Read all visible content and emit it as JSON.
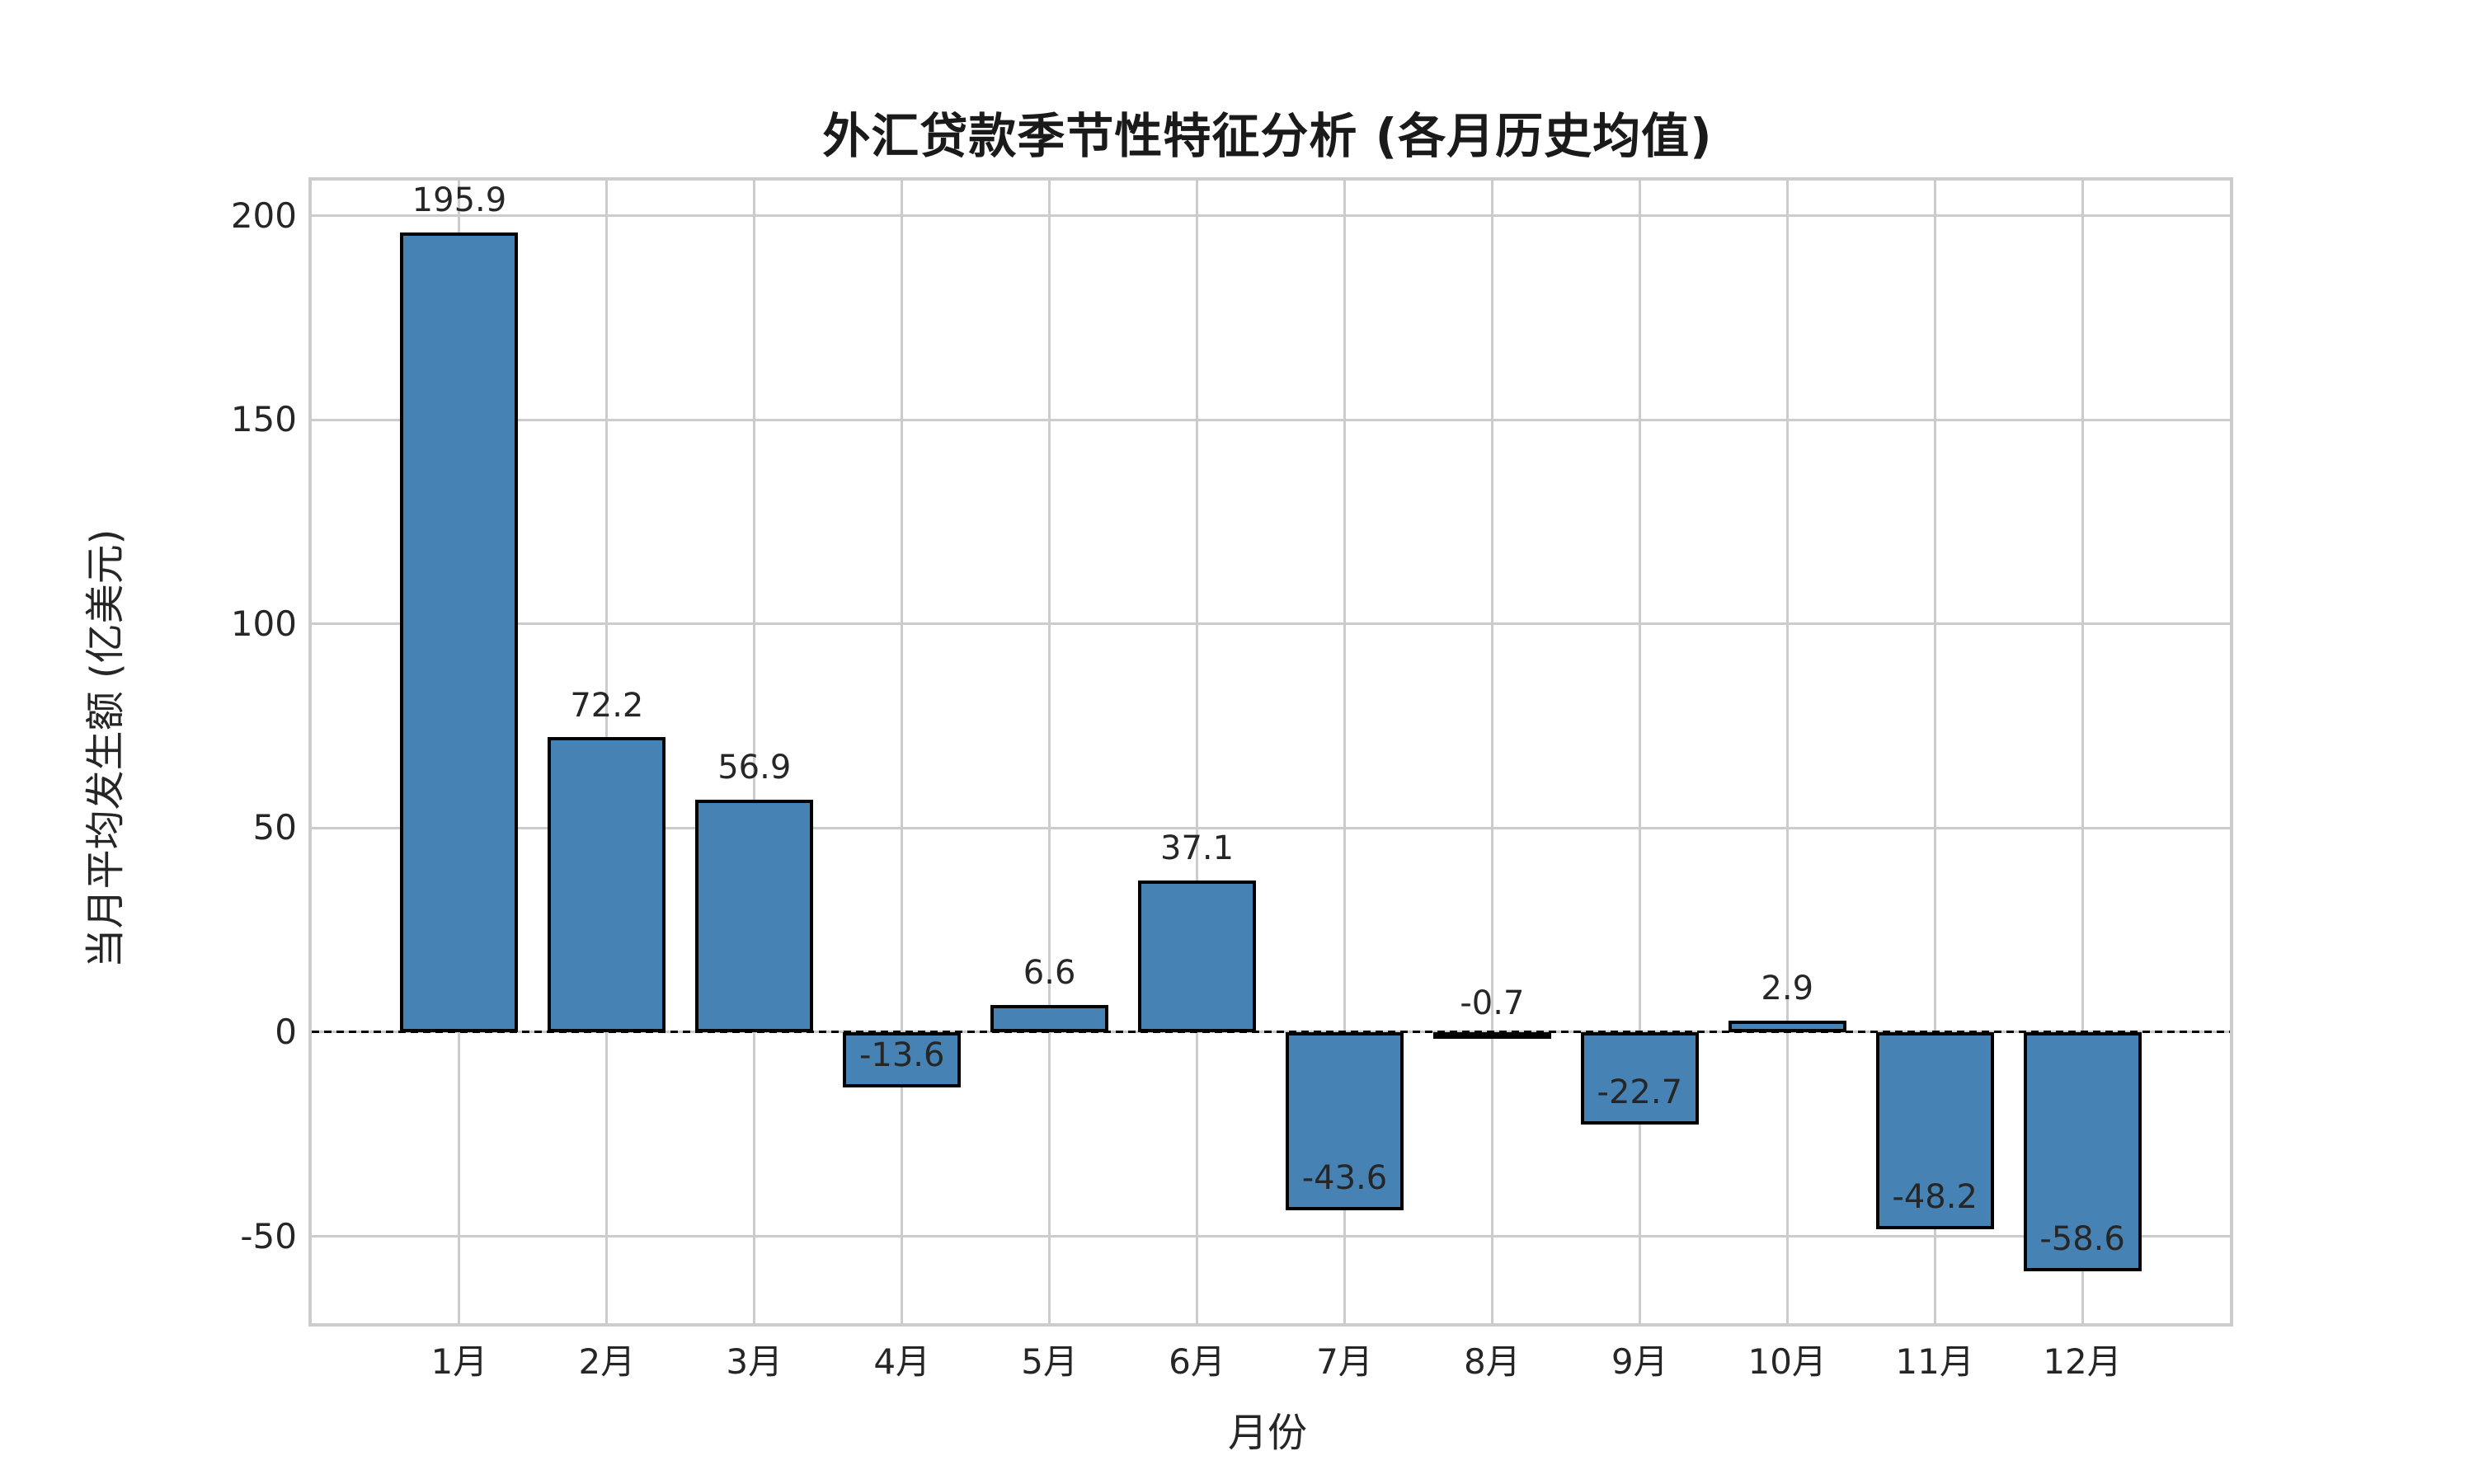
{
  "chart_data": {
    "type": "bar",
    "title": "外汇贷款季节性特征分析 (各月历史均值)",
    "xlabel": "月份",
    "ylabel": "当月平均发生额 (亿美元)",
    "categories": [
      "1月",
      "2月",
      "3月",
      "4月",
      "5月",
      "6月",
      "7月",
      "8月",
      "9月",
      "10月",
      "11月",
      "12月"
    ],
    "values": [
      195.9,
      72.2,
      56.9,
      -13.6,
      6.6,
      37.1,
      -43.6,
      -0.7,
      -22.7,
      2.9,
      -48.2,
      -58.6
    ],
    "value_labels": [
      "195.9",
      "72.2",
      "56.9",
      "-13.6",
      "6.6",
      "37.1",
      "-43.6",
      "-0.7",
      "-22.7",
      "2.9",
      "-48.2",
      "-58.6"
    ],
    "ylim": [
      -71.3,
      208.6
    ],
    "yticks": [
      -50,
      0,
      50,
      100,
      150,
      200
    ],
    "ytick_labels": [
      "-50",
      "0",
      "50",
      "100",
      "150",
      "200"
    ],
    "grid": true,
    "legend": "none",
    "zero_line": "dashed",
    "colors": {
      "bar_fill": "#4682B4",
      "bar_edge": "#000000",
      "grid_line": "#cccccc",
      "axis_spine": "#cccccc",
      "zero_line": "#000000",
      "tick_text": "#262626",
      "title_text": "#1a1a1a",
      "background": "#ffffff"
    }
  }
}
